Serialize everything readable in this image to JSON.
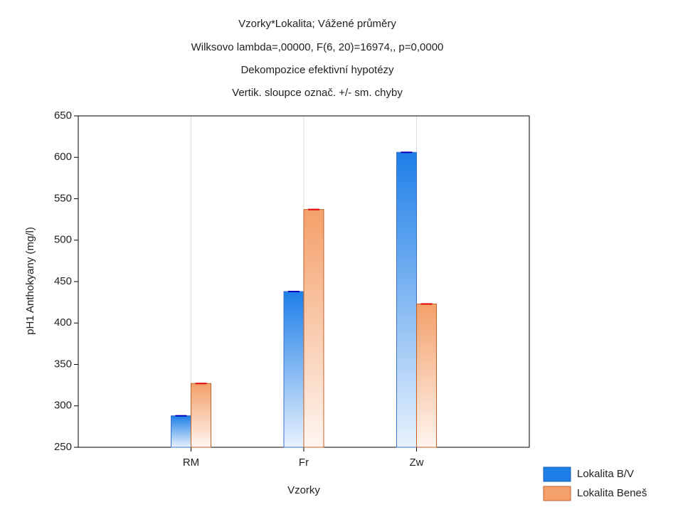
{
  "chart_data": {
    "type": "bar",
    "title": [
      "Vzorky*Lokalita; Vážené průměry",
      "Wilksovo lambda=,00000, F(6, 20)=16974,, p=0,0000",
      "Dekompozice efektivní hypotézy",
      "Vertik. sloupce označ. +/- sm. chyby"
    ],
    "xlabel": "Vzorky",
    "ylabel": "pH1 Anthokyany (mg/l)",
    "categories": [
      "RM",
      "Fr",
      "Zw"
    ],
    "series": [
      {
        "name": "Lokalita B/V",
        "color": "#1e7fe8",
        "values": [
          288,
          438,
          606
        ]
      },
      {
        "name": "Lokalita Beneš",
        "color": "#f4a06a",
        "values": [
          327,
          537,
          423
        ]
      }
    ],
    "ylim": [
      250,
      650
    ],
    "yticks": [
      250,
      300,
      350,
      400,
      450,
      500,
      550,
      600,
      650
    ],
    "grid": true,
    "legend": "bottom-right"
  }
}
